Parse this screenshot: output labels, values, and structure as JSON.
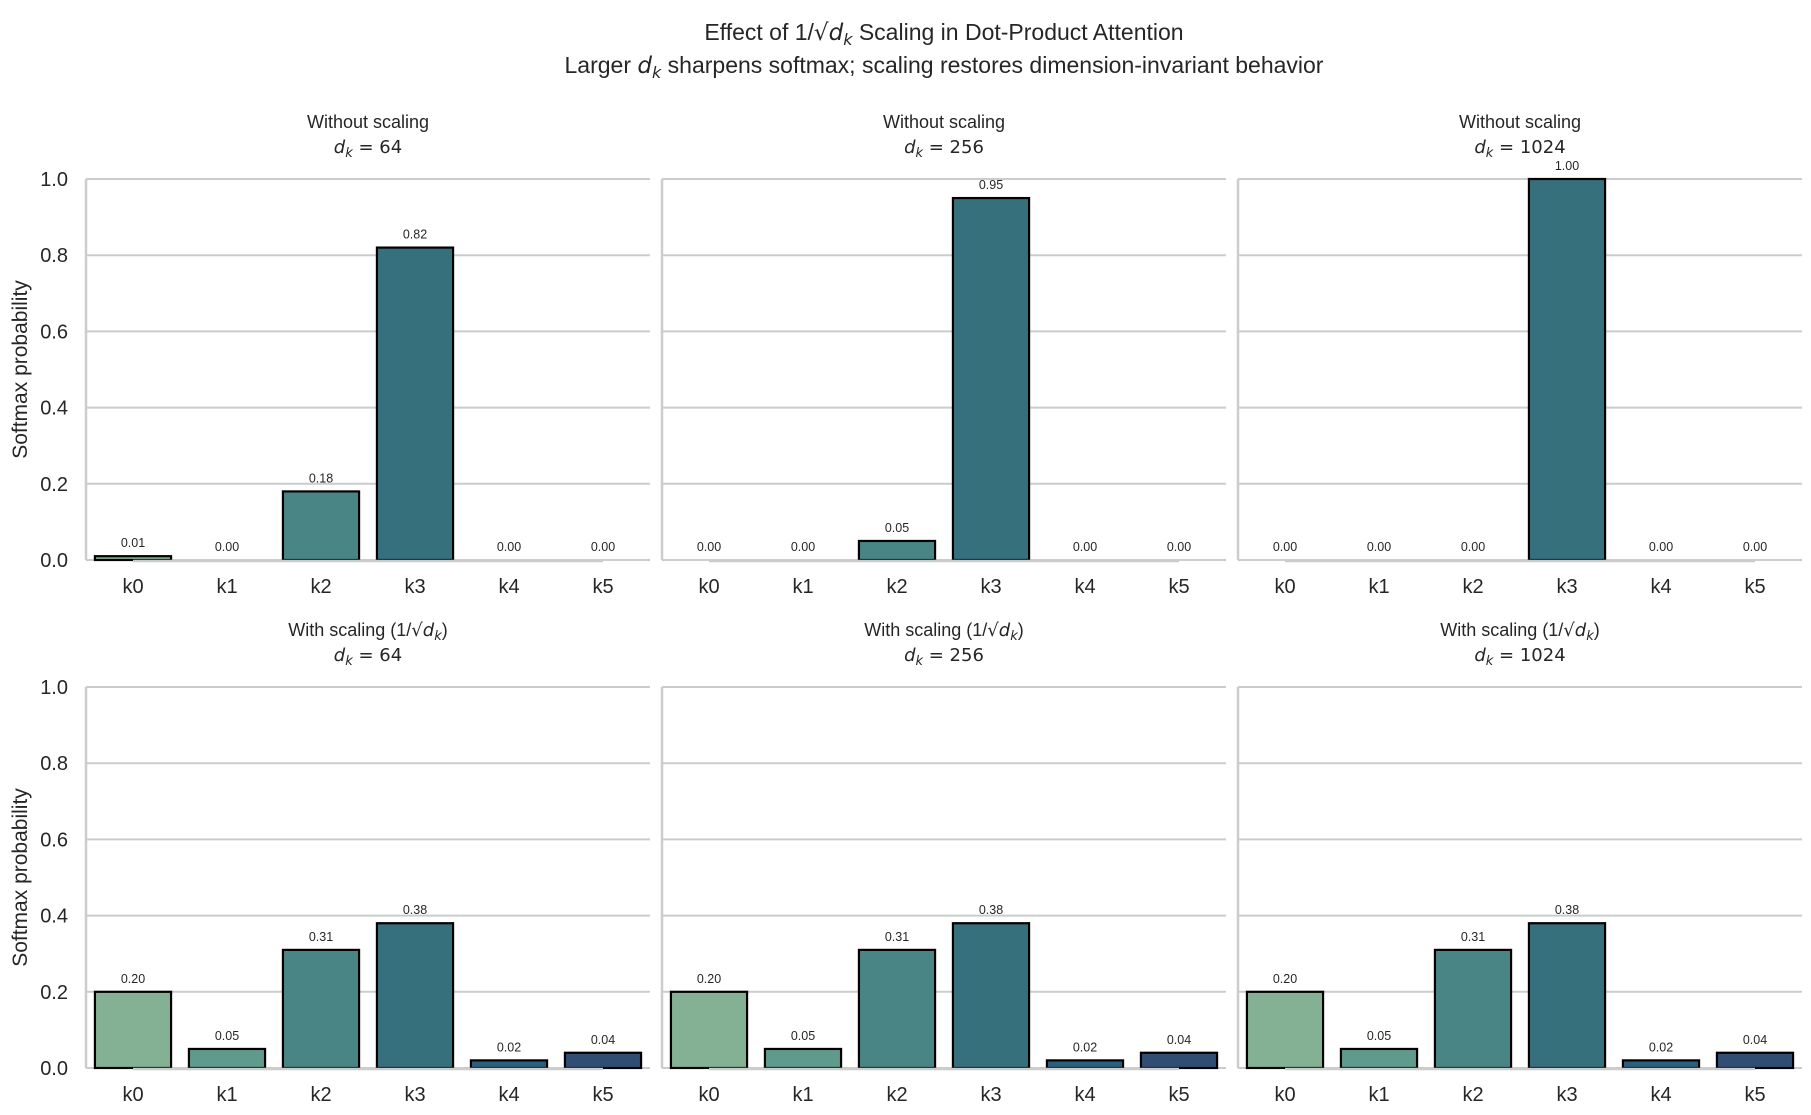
{
  "chart_data": {
    "type": "bar",
    "title": "Effect of 1/√dₖ Scaling in Dot-Product Attention",
    "subtitle": "Larger dₖ sharpens softmax; scaling restores dimension-invariant behavior",
    "title_parts": {
      "line1_pre": "Effect of 1/",
      "line1_sym": "d",
      "line1_sub": "k",
      "line1_post": " Scaling in Dot-Product Attention",
      "line2_pre": "Larger ",
      "line2_sym": "d",
      "line2_sub": "k",
      "line2_post": " sharpens softmax; scaling restores dimension-invariant behavior"
    },
    "ylabel": "Softmax probability",
    "xlabel": "",
    "ylim": [
      0,
      1.0
    ],
    "yticks": [
      "0.0",
      "0.2",
      "0.4",
      "0.6",
      "0.8",
      "1.0"
    ],
    "ytick_values": [
      0,
      0.2,
      0.4,
      0.6,
      0.8,
      1.0
    ],
    "grid": true,
    "categories": [
      "k0",
      "k1",
      "k2",
      "k3",
      "k4",
      "k5"
    ],
    "palette": [
      "#84b193",
      "#5f9a8c",
      "#4a8585",
      "#37707d",
      "#2c5f7c",
      "#304d74"
    ],
    "panels": [
      {
        "row": 0,
        "col": 0,
        "title_line1": "Without scaling",
        "dk": "64",
        "values": [
          0.01,
          0.0,
          0.18,
          0.82,
          0.0,
          0.0
        ],
        "labels": [
          "0.01",
          "0.00",
          "0.18",
          "0.82",
          "0.00",
          "0.00"
        ]
      },
      {
        "row": 0,
        "col": 1,
        "title_line1": "Without scaling",
        "dk": "256",
        "values": [
          0.0,
          0.0,
          0.05,
          0.95,
          0.0,
          0.0
        ],
        "labels": [
          "0.00",
          "0.00",
          "0.05",
          "0.95",
          "0.00",
          "0.00"
        ]
      },
      {
        "row": 0,
        "col": 2,
        "title_line1": "Without scaling",
        "dk": "1024",
        "values": [
          0.0,
          0.0,
          0.0,
          1.0,
          0.0,
          0.0
        ],
        "labels": [
          "0.00",
          "0.00",
          "0.00",
          "1.00",
          "0.00",
          "0.00"
        ]
      },
      {
        "row": 1,
        "col": 0,
        "title_line1": "With scaling (1/√dₖ)",
        "dk": "64",
        "values": [
          0.2,
          0.05,
          0.31,
          0.38,
          0.02,
          0.04
        ],
        "labels": [
          "0.20",
          "0.05",
          "0.31",
          "0.38",
          "0.02",
          "0.04"
        ]
      },
      {
        "row": 1,
        "col": 1,
        "title_line1": "With scaling (1/√dₖ)",
        "dk": "256",
        "values": [
          0.2,
          0.05,
          0.31,
          0.38,
          0.02,
          0.04
        ],
        "labels": [
          "0.20",
          "0.05",
          "0.31",
          "0.38",
          "0.02",
          "0.04"
        ]
      },
      {
        "row": 1,
        "col": 2,
        "title_line1": "With scaling (1/√dₖ)",
        "dk": "1024",
        "values": [
          0.2,
          0.05,
          0.31,
          0.38,
          0.02,
          0.04
        ],
        "labels": [
          "0.20",
          "0.05",
          "0.31",
          "0.38",
          "0.02",
          "0.04"
        ]
      }
    ],
    "panel_title_parts": {
      "without_text": "Without scaling",
      "with_pre": "With scaling (1/",
      "with_sym": "d",
      "with_sub": "k",
      "with_post": ")",
      "dk_sym": "d",
      "dk_sub": "k",
      "dk_eq": " = "
    }
  }
}
